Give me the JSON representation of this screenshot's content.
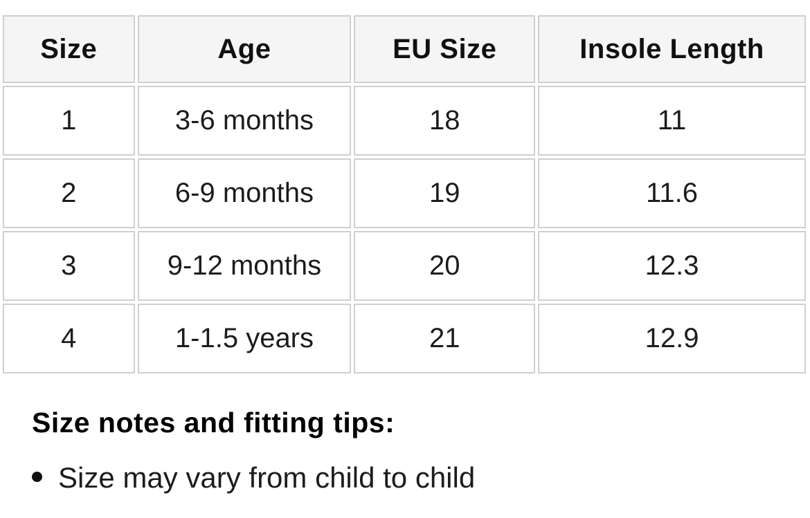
{
  "table": {
    "headers": [
      "Size",
      "Age",
      "EU Size",
      "Insole Length"
    ],
    "rows": [
      [
        "1",
        "3-6 months",
        "18",
        "11"
      ],
      [
        "2",
        "6-9 months",
        "19",
        "11.6"
      ],
      [
        "3",
        "9-12 months",
        "20",
        "12.3"
      ],
      [
        "4",
        "1-1.5 years",
        "21",
        "12.9"
      ]
    ]
  },
  "notes": {
    "heading": "Size notes and fitting tips:",
    "items": [
      "Size may vary from child to child"
    ]
  },
  "colors": {
    "header_background": "#f5f5f5",
    "cell_border": "#cfcfcf",
    "text": "#161616"
  }
}
